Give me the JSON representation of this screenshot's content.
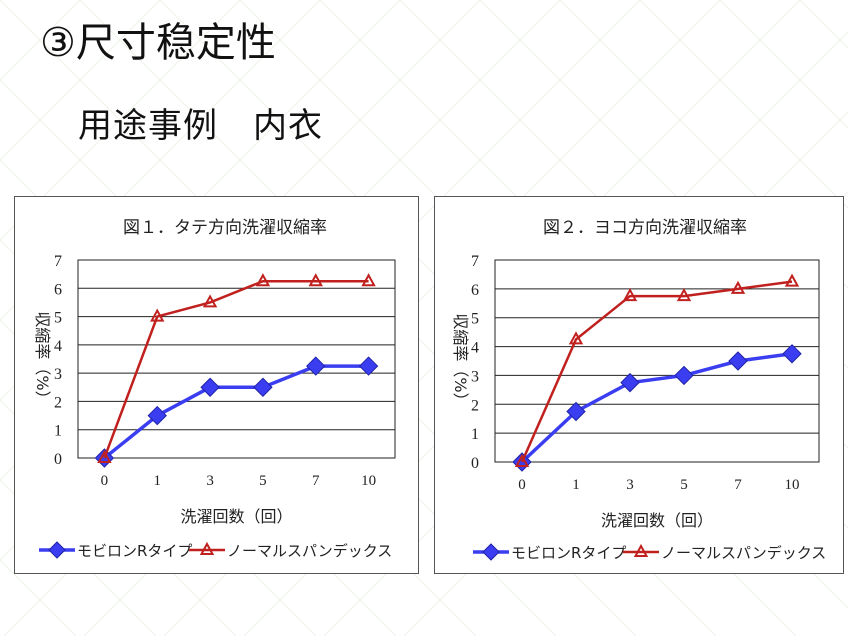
{
  "header": {
    "title": "③尺寸稳定性",
    "subtitle": "用途事例　内衣"
  },
  "chart_data": [
    {
      "type": "line",
      "title": "図１．タテ方向洗濯収縮率",
      "xlabel": "洗濯回数（回）",
      "ylabel": "収縮率（%）",
      "categories": [
        "0",
        "1",
        "3",
        "5",
        "7",
        "10"
      ],
      "ylim": [
        0,
        7
      ],
      "yticks": [
        "0",
        "1",
        "2",
        "3",
        "4",
        "5",
        "6",
        "7"
      ],
      "grid": true,
      "legend": "bottom",
      "series": [
        {
          "name": "モビロンRタイプ",
          "values": [
            0,
            1.5,
            2.5,
            2.5,
            3.25,
            3.25
          ],
          "color": "#3a3ef0",
          "marker": "diamond"
        },
        {
          "name": "ノーマルスパンデックス",
          "values": [
            0,
            5,
            5.5,
            6.25,
            6.25,
            6.25
          ],
          "color": "#c0201e",
          "marker": "triangle"
        }
      ]
    },
    {
      "type": "line",
      "title": "図２．ヨコ方向洗濯収縮率",
      "xlabel": "洗濯回数（回）",
      "ylabel": "収縮率（%）",
      "categories": [
        "0",
        "1",
        "3",
        "5",
        "7",
        "10"
      ],
      "ylim": [
        0,
        7
      ],
      "yticks": [
        "0",
        "1",
        "2",
        "3",
        "4",
        "5",
        "6",
        "7"
      ],
      "grid": true,
      "legend": "bottom",
      "series": [
        {
          "name": "モビロンRタイプ",
          "values": [
            0,
            1.75,
            2.75,
            3,
            3.5,
            3.75
          ],
          "color": "#3a3ef0",
          "marker": "diamond"
        },
        {
          "name": "ノーマルスパンデックス",
          "values": [
            0,
            4.25,
            5.75,
            5.75,
            6,
            6.25
          ],
          "color": "#c0201e",
          "marker": "triangle"
        }
      ]
    }
  ]
}
